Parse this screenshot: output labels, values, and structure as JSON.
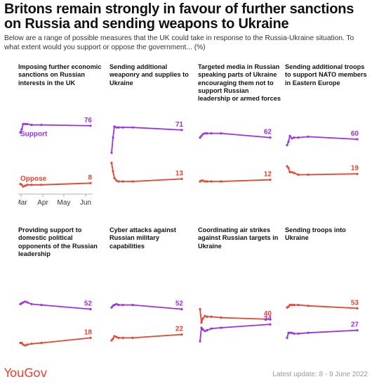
{
  "title": "Britons remain strongly in favour of further sanctions on Russia and sending weapons to Ukraine",
  "subtitle": "Below are a range of possible measures that the UK could take in response to the Russia-Ukraine situation. To what extent would you support or oppose the government... (%)",
  "logo_text": "YouGov",
  "update_text": "Latest update: 8 - 9 June 2022",
  "colors": {
    "support": "#9b30e8",
    "oppose": "#e8432e"
  },
  "chart_data": {
    "type": "line",
    "ylim": [
      0,
      100
    ],
    "x": [
      "Feb 28",
      "Mar 2",
      "Mar 4",
      "Mar 7",
      "Mar 10",
      "Mar 16",
      "Mar 30",
      "Jun 8"
    ],
    "x_ticks": [
      "Mar",
      "Apr",
      "May",
      "Jun"
    ],
    "series_labels": {
      "support": "Support",
      "oppose": "Oppose"
    },
    "panels": [
      {
        "title": "Imposing further economic sanctions on Russian interests in the UK",
        "series": [
          {
            "name": "Support",
            "values": [
              68,
              72,
              78,
              78,
              78,
              77,
              77,
              76
            ]
          },
          {
            "name": "Oppose",
            "values": [
              7,
              6,
              4,
              5,
              6,
              6,
              6,
              8
            ]
          }
        ]
      },
      {
        "title": "Sending additional weaponry and supplies to Ukraine",
        "series": [
          {
            "name": "Support",
            "values": [
              44,
              62,
              75,
              74,
              74,
              74,
              74,
              71
            ]
          },
          {
            "name": "Oppose",
            "values": [
              32,
              22,
              14,
              11,
              10,
              10,
              10,
              13
            ]
          }
        ]
      },
      {
        "title": "Targeted media in Russian speaking parts of Ukraine encouraging them not to support Russian leadership or armed forces",
        "series": [
          {
            "name": "Support",
            "values": [
              62,
              64,
              66,
              67,
              67,
              67,
              67,
              62
            ]
          },
          {
            "name": "Oppose",
            "values": [
              10,
              11,
              11,
              10,
              10,
              10,
              10,
              12
            ]
          }
        ]
      },
      {
        "title": "Sending additional troops to support NATO members in Eastern Europe",
        "series": [
          {
            "name": "Support",
            "values": [
              53,
              57,
              64,
              61,
              62,
              62,
              63,
              60
            ]
          },
          {
            "name": "Oppose",
            "values": [
              28,
              26,
              21,
              21,
              20,
              18,
              18,
              19
            ]
          }
        ]
      },
      {
        "title": "Providing support to domestic political opponents of the Russian leadership",
        "series": [
          {
            "name": "Support",
            "values": [
              58,
              59,
              60,
              61,
              60,
              58,
              57,
              52
            ]
          },
          {
            "name": "Oppose",
            "values": [
              12,
              12,
              10,
              9,
              10,
              11,
              12,
              18
            ]
          }
        ]
      },
      {
        "title": "Cyber attacks against Russian military capabilities",
        "series": [
          {
            "name": "Support",
            "values": [
              54,
              56,
              57,
              58,
              57,
              57,
              57,
              52
            ]
          },
          {
            "name": "Oppose",
            "values": [
              15,
              17,
              20,
              19,
              18,
              18,
              18,
              22
            ]
          }
        ]
      },
      {
        "title": "Coordinating air strikes against Russian targets in Ukraine",
        "series": [
          {
            "name": "Support",
            "values": [
              14,
              30,
              28,
              26,
              27,
              29,
              30,
              34
            ]
          },
          {
            "name": "Oppose",
            "values": [
              52,
              36,
              41,
              44,
              43,
              43,
              42,
              40
            ]
          }
        ]
      },
      {
        "title": "Sending troops into Ukraine",
        "series": [
          {
            "name": "Support",
            "values": [
              18,
              24,
              24,
              24,
              23,
              23,
              24,
              27
            ]
          },
          {
            "name": "Oppose",
            "values": [
              54,
              55,
              57,
              57,
              57,
              57,
              56,
              53
            ]
          }
        ]
      }
    ]
  }
}
